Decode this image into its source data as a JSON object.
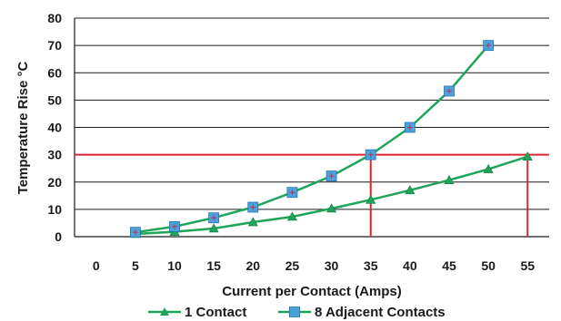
{
  "chart_data": {
    "type": "line",
    "title": "",
    "xlabel": "Current per Contact (Amps)",
    "ylabel": "Temperature Rise °C",
    "x_ticks": [
      "0",
      "5",
      "10",
      "15",
      "20",
      "25",
      "30",
      "35",
      "40",
      "45",
      "50",
      "55"
    ],
    "y_ticks": [
      "0",
      "10",
      "20",
      "30",
      "40",
      "50",
      "60",
      "70",
      "80"
    ],
    "xlim": [
      0,
      55
    ],
    "ylim": [
      0,
      80
    ],
    "grid": "horizontal",
    "legend_position": "bottom",
    "series": [
      {
        "name": "1 Contact",
        "color": "#1fa55a",
        "marker": "triangle",
        "x": [
          5,
          10,
          15,
          20,
          25,
          30,
          35,
          40,
          45,
          50,
          55
        ],
        "y": [
          1,
          1.8,
          3,
          5.3,
          7.3,
          10.3,
          13.5,
          17,
          20.7,
          24.7,
          29.3
        ]
      },
      {
        "name": "8 Adjacent Contacts",
        "color": "#1fa55a",
        "marker": "square",
        "marker_color": "#4aa3df",
        "x": [
          5,
          10,
          15,
          20,
          25,
          30,
          35,
          40,
          45,
          50
        ],
        "y": [
          1.6,
          3.7,
          6.9,
          10.8,
          16.2,
          22.2,
          30,
          40,
          53.3,
          70
        ]
      }
    ],
    "reference_lines": {
      "color": "#d9282f",
      "horizontal_y": 30,
      "vertical_x": [
        35,
        55
      ]
    }
  }
}
